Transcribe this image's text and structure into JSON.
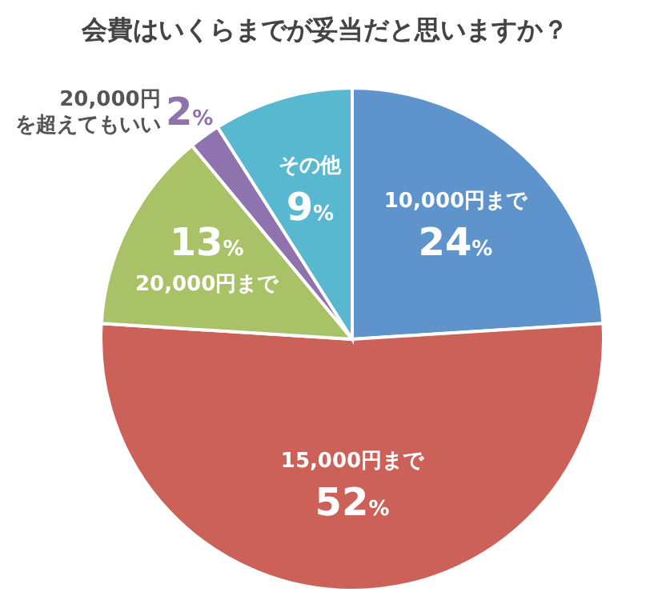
{
  "chart_data": {
    "type": "pie",
    "title": "会費はいくらまでが妥当だと思いますか？",
    "categories": [
      "10,000円まで",
      "15,000円まで",
      "20,000円まで",
      "20,000円を超えてもいい",
      "その他"
    ],
    "values": [
      24,
      52,
      13,
      2,
      9
    ],
    "value_labels": [
      "24%",
      "52%",
      "13%",
      "2%",
      "9%"
    ],
    "colors": [
      "#5e93cc",
      "#cc6159",
      "#a9c167",
      "#8e73ae",
      "#58b8cf"
    ]
  }
}
